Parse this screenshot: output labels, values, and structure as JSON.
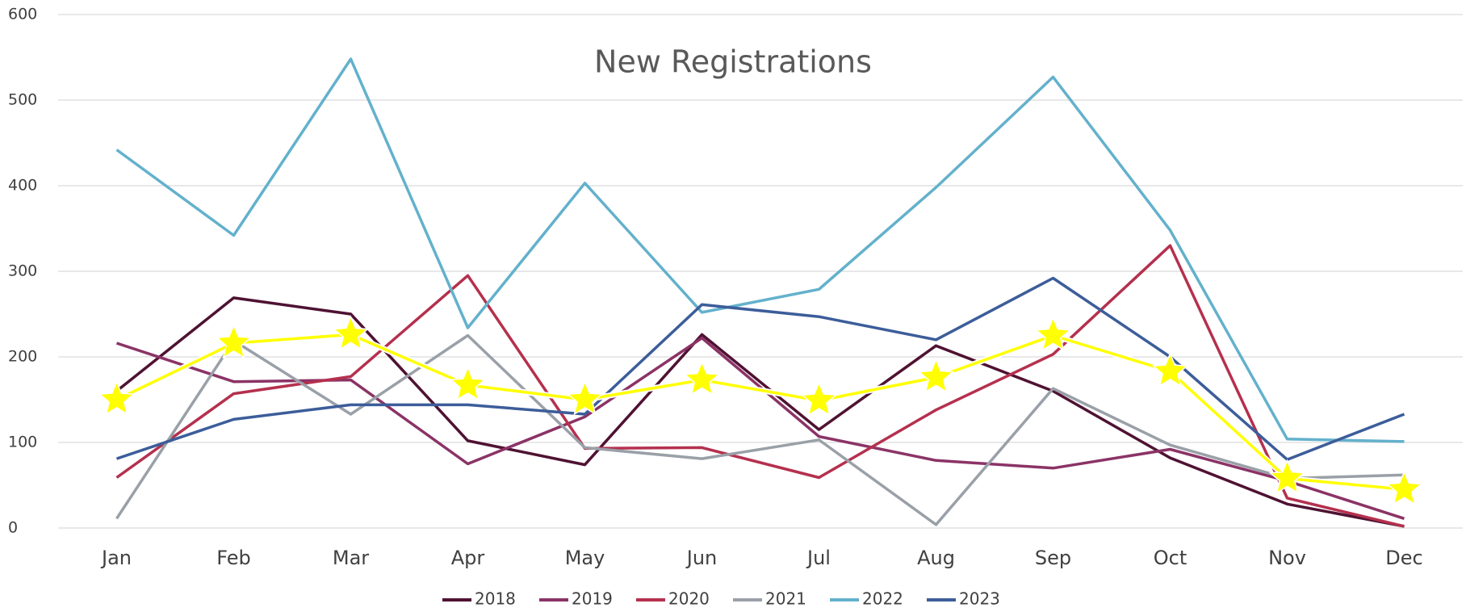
{
  "chart_data": {
    "type": "line",
    "title": "New Registrations",
    "categories": [
      "Jan",
      "Feb",
      "Mar",
      "Apr",
      "May",
      "Jun",
      "Jul",
      "Aug",
      "Sep",
      "Oct",
      "Nov",
      "Dec"
    ],
    "series": [
      {
        "name": "2018",
        "color": "#4f1232",
        "values": [
          160,
          269,
          250,
          102,
          74,
          226,
          115,
          213,
          160,
          82,
          28,
          2
        ]
      },
      {
        "name": "2019",
        "color": "#8b3366",
        "values": [
          216,
          171,
          173,
          75,
          130,
          222,
          107,
          79,
          70,
          92,
          55,
          11
        ]
      },
      {
        "name": "2020",
        "color": "#b5304e",
        "values": [
          59,
          157,
          177,
          295,
          93,
          94,
          59,
          138,
          203,
          330,
          35,
          2
        ]
      },
      {
        "name": "2021",
        "color": "#9aa0a8",
        "values": [
          11,
          219,
          133,
          225,
          94,
          81,
          103,
          4,
          163,
          97,
          58,
          62
        ]
      },
      {
        "name": "2022",
        "color": "#63b1cc",
        "values": [
          442,
          342,
          548,
          234,
          403,
          252,
          279,
          398,
          527,
          348,
          104,
          101
        ]
      },
      {
        "name": "2023",
        "color": "#3c5d9a",
        "values": [
          81,
          127,
          144,
          144,
          133,
          261,
          247,
          220,
          292,
          200,
          80,
          133
        ]
      },
      {
        "color": "#ffff00",
        "marker": "star",
        "values": [
          150,
          216,
          226,
          167,
          150,
          173,
          149,
          176,
          225,
          183,
          58,
          45
        ]
      }
    ],
    "ylim": [
      0,
      600
    ],
    "yticks": [
      0,
      100,
      200,
      300,
      400,
      500,
      600
    ],
    "grid": true,
    "legend": "bottom"
  }
}
